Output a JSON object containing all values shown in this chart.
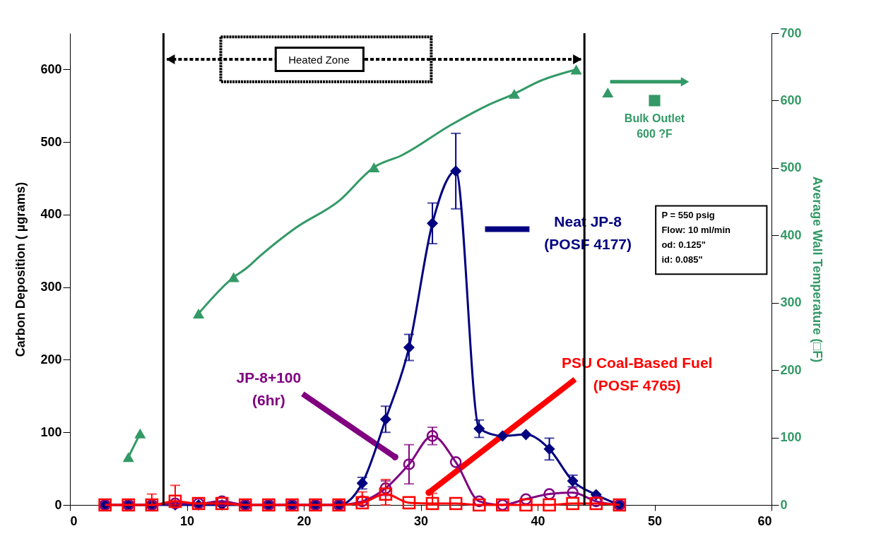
{
  "chart_data": {
    "type": "line",
    "xlabel": null,
    "ylabel": "Carbon Deposition (  µgrams)",
    "y2label": "Average Wall Temperature (□F)",
    "x": [
      3,
      5,
      7,
      9,
      11,
      13,
      15,
      17,
      19,
      21,
      23,
      25,
      27,
      29,
      31,
      33,
      35,
      37,
      39,
      41,
      43,
      45,
      47
    ],
    "xlim": [
      0,
      60
    ],
    "xticks": [
      0,
      10,
      20,
      30,
      40,
      50,
      60
    ],
    "ylim": [
      0,
      650
    ],
    "yticks": [
      0,
      100,
      200,
      300,
      400,
      500,
      600
    ],
    "y2lim": [
      0,
      700
    ],
    "y2ticks": [
      0,
      100,
      200,
      300,
      400,
      500,
      600,
      700
    ],
    "grid": false,
    "line_style": "solid",
    "series": [
      {
        "color": "#000080",
        "marker": "diamond",
        "values": [
          0,
          0,
          0,
          0,
          0,
          0,
          0,
          0,
          0,
          0,
          0,
          30,
          118,
          217,
          388,
          460,
          105,
          95,
          97,
          77,
          33,
          14,
          0
        ],
        "errors": [
          null,
          null,
          null,
          null,
          null,
          null,
          null,
          null,
          null,
          null,
          null,
          8,
          18,
          18,
          28,
          52,
          12,
          null,
          null,
          15,
          8,
          null,
          null
        ]
      },
      {
        "color": "#800080",
        "marker": "circle",
        "values": [
          0,
          0,
          0,
          2,
          2,
          5,
          0,
          0,
          0,
          0,
          0,
          5,
          23,
          56,
          95,
          59,
          5,
          0,
          8,
          15,
          17,
          5,
          0
        ],
        "errors": [
          null,
          null,
          null,
          null,
          null,
          null,
          null,
          null,
          null,
          null,
          null,
          null,
          10,
          27,
          12,
          null,
          null,
          null,
          null,
          null,
          null,
          null,
          null
        ]
      },
      {
        "color": "#ff0000",
        "marker": "square",
        "values": [
          0,
          0,
          0,
          5,
          2,
          2,
          0,
          0,
          0,
          0,
          0,
          3,
          15,
          3,
          2,
          2,
          0,
          0,
          0,
          0,
          2,
          2,
          0
        ],
        "errors": [
          null,
          null,
          [
            0,
            15
          ],
          [
            0,
            27
          ],
          null,
          null,
          null,
          null,
          null,
          null,
          null,
          [
            0,
            18
          ],
          [
            0,
            35
          ],
          null,
          [
            0,
            16
          ],
          null,
          null,
          null,
          null,
          null,
          null,
          null,
          null
        ]
      },
      {
        "axis": "y2",
        "color": "#339966",
        "marker": "none",
        "x": [
          5,
          6
        ],
        "values": [
          71,
          106
        ]
      },
      {
        "axis": "y2",
        "color": "#339966",
        "marker": "none",
        "x": [
          11,
          13,
          14,
          15,
          16.3,
          19.3,
          23,
          26,
          28.4,
          32.6,
          35.6,
          38,
          40.2,
          43.3
        ],
        "values": [
          284,
          322,
          338,
          350,
          370,
          411,
          451,
          501,
          519,
          564,
          592,
          610,
          629,
          646
        ]
      },
      {
        "type": "scatter",
        "axis": "y2",
        "color": "#339966",
        "marker": "triangle",
        "x": [
          5,
          6,
          11,
          14,
          26,
          38,
          43.3,
          46
        ],
        "values": [
          71,
          106,
          284,
          338,
          501,
          610,
          646,
          612
        ]
      },
      {
        "type": "scatter",
        "axis": "y2",
        "color": "#339966",
        "marker": "square",
        "x": [
          50
        ],
        "values": [
          600
        ]
      }
    ],
    "ref_lines": [
      {
        "axis": "x",
        "value": 8,
        "color": "#000000"
      },
      {
        "axis": "x",
        "value": 44,
        "color": "#000000"
      }
    ],
    "annotations": [
      "Neat JP-8\n(POSF 4177)",
      {
        "text": "JP-8+100\n(6hr)",
        "x": 27.8,
        "y": 66
      },
      {
        "text": "PSU Coal-Based Fuel\n(POSF 4765)",
        "x": 30.7,
        "y": 17
      },
      "Heated Zone",
      "Bulk Outlet\n600 ?F",
      "P = 550 psig\nFlow: 10 ml/min\nod: 0.125\"\nid: 0.085\""
    ]
  }
}
